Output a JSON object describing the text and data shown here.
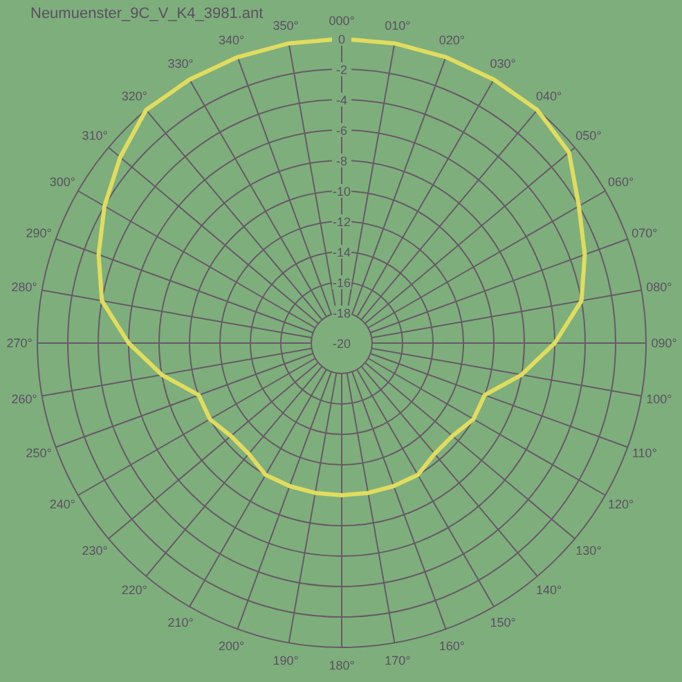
{
  "chart_data": {
    "type": "radar",
    "title": "Neumuenster_9C_V_K4_3981.ant",
    "categories": [
      "000°",
      "010°",
      "020°",
      "030°",
      "040°",
      "050°",
      "060°",
      "070°",
      "080°",
      "090°",
      "100°",
      "110°",
      "120°",
      "130°",
      "140°",
      "150°",
      "160°",
      "170°",
      "180°",
      "190°",
      "200°",
      "210°",
      "220°",
      "230°",
      "240°",
      "250°",
      "260°",
      "270°",
      "280°",
      "290°",
      "300°",
      "310°",
      "320°",
      "330°",
      "340°",
      "350°"
    ],
    "series": [
      {
        "color": "#e0dc60",
        "values": [
          0,
          0,
          0,
          0,
          0,
          -0.5,
          -2,
          -3,
          -4,
          -6,
          -8,
          -10,
          -10,
          -10.5,
          -10.5,
          -10,
          -10,
          -10,
          -10,
          -10,
          -10,
          -10,
          -10.5,
          -10.5,
          -10,
          -10,
          -8,
          -6,
          -4,
          -3,
          -2,
          -1,
          0,
          0,
          0,
          0
        ]
      }
    ],
    "ylim": [
      -20,
      0
    ],
    "yticks": [
      0,
      -2,
      -4,
      -6,
      -8,
      -10,
      -12,
      -14,
      -16,
      -18,
      -20
    ],
    "grid": true
  }
}
